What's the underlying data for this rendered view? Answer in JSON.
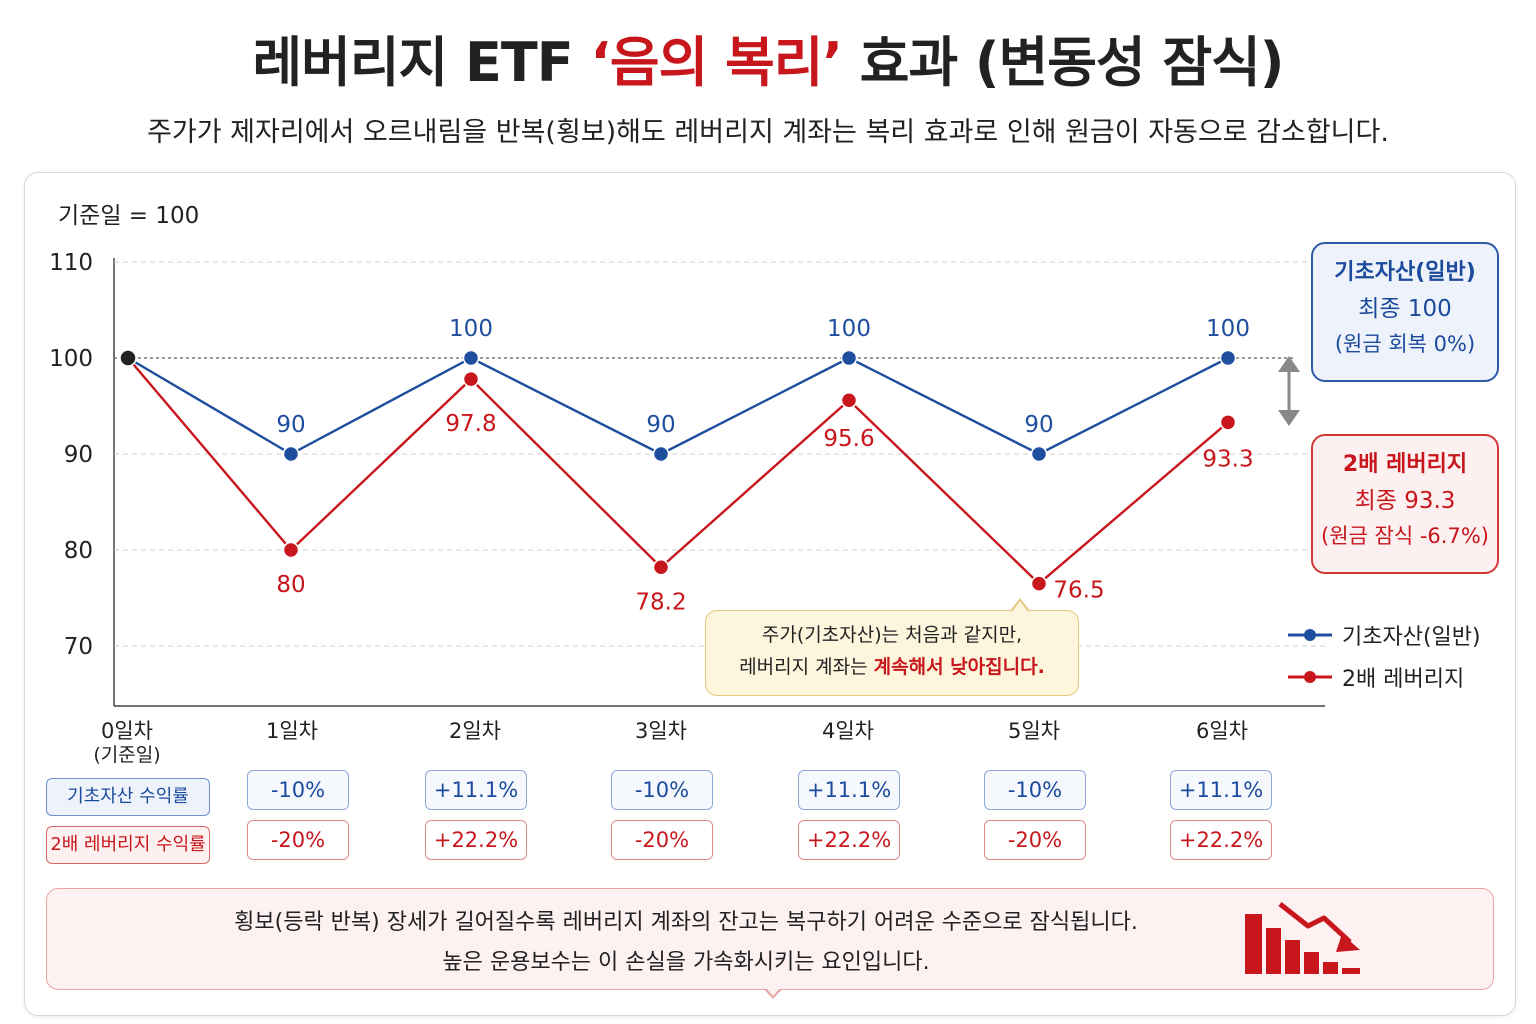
{
  "title": {
    "prefix": "레버리지 ETF ",
    "highlight": "‘음의 복리’",
    "suffix": " 효과 (변동성 잠식)"
  },
  "subtitle": "주가가 제자리에서 오르내림을 반복(횡보)해도 레버리지 계좌는 복리 효과로 인해 원금이 자동으로 감소합니다.",
  "base_label": "기준일 = 100",
  "summary": {
    "underlying": {
      "title": "기초자산(일반)",
      "final": "최종 100",
      "note": "(원금 회복 0%)"
    },
    "leveraged": {
      "title": "2배 레버리지",
      "final": "최종 93.3",
      "note": "(원금 잠식 -6.7%)"
    }
  },
  "legend": {
    "underlying": "기초자산(일반)",
    "leveraged": "2배 레버리지"
  },
  "callout": {
    "line1": "주가(기초자산)는 처음과 같지만,",
    "line2_prefix": "레버리지 계좌는 ",
    "line2_highlight": "계속해서 낮아집니다."
  },
  "days": [
    {
      "label": "0일차",
      "sub": "(기준일)"
    },
    {
      "label": "1일차",
      "sub": ""
    },
    {
      "label": "2일차",
      "sub": ""
    },
    {
      "label": "3일차",
      "sub": ""
    },
    {
      "label": "4일차",
      "sub": ""
    },
    {
      "label": "5일차",
      "sub": ""
    },
    {
      "label": "6일차",
      "sub": ""
    }
  ],
  "returns": {
    "underlying_label": "기초자산 수익률",
    "leveraged_label": "2배 레버리지 수익률",
    "underlying": [
      "-10%",
      "+11.1%",
      "-10%",
      "+11.1%",
      "-10%",
      "+11.1%"
    ],
    "leveraged": [
      "-20%",
      "+22.2%",
      "-20%",
      "+22.2%",
      "-20%",
      "+22.2%"
    ]
  },
  "note": {
    "line1": "횡보(등락 반복) 장세가 길어질수록 레버리지 계좌의 잔고는 복구하기 어려운 수준으로 잠식됩니다.",
    "line2": "높은 운용보수는 이 손실을 가속화시키는 요인입니다."
  },
  "colors": {
    "underlying": "#1f4e9e",
    "leveraged": "#c8161d",
    "start_point": "#222222"
  },
  "chart_data": {
    "type": "line",
    "x": [
      0,
      1,
      2,
      3,
      4,
      5,
      6
    ],
    "ylim": [
      65,
      110
    ],
    "yticks": [
      70,
      80,
      90,
      100,
      110
    ],
    "reference_line": 100,
    "grid": true,
    "legend_position": "right",
    "series": [
      {
        "name": "기초자산(일반)",
        "values": [
          100,
          90,
          100,
          90,
          100,
          90,
          100
        ],
        "labels": [
          "",
          "90",
          "100",
          "90",
          "100",
          "90",
          "100"
        ]
      },
      {
        "name": "2배 레버리지",
        "values": [
          100,
          80,
          97.8,
          78.2,
          95.6,
          76.5,
          93.3
        ],
        "labels": [
          "",
          "80",
          "97.8",
          "78.2",
          "95.6",
          "76.5",
          "93.3"
        ]
      }
    ]
  }
}
